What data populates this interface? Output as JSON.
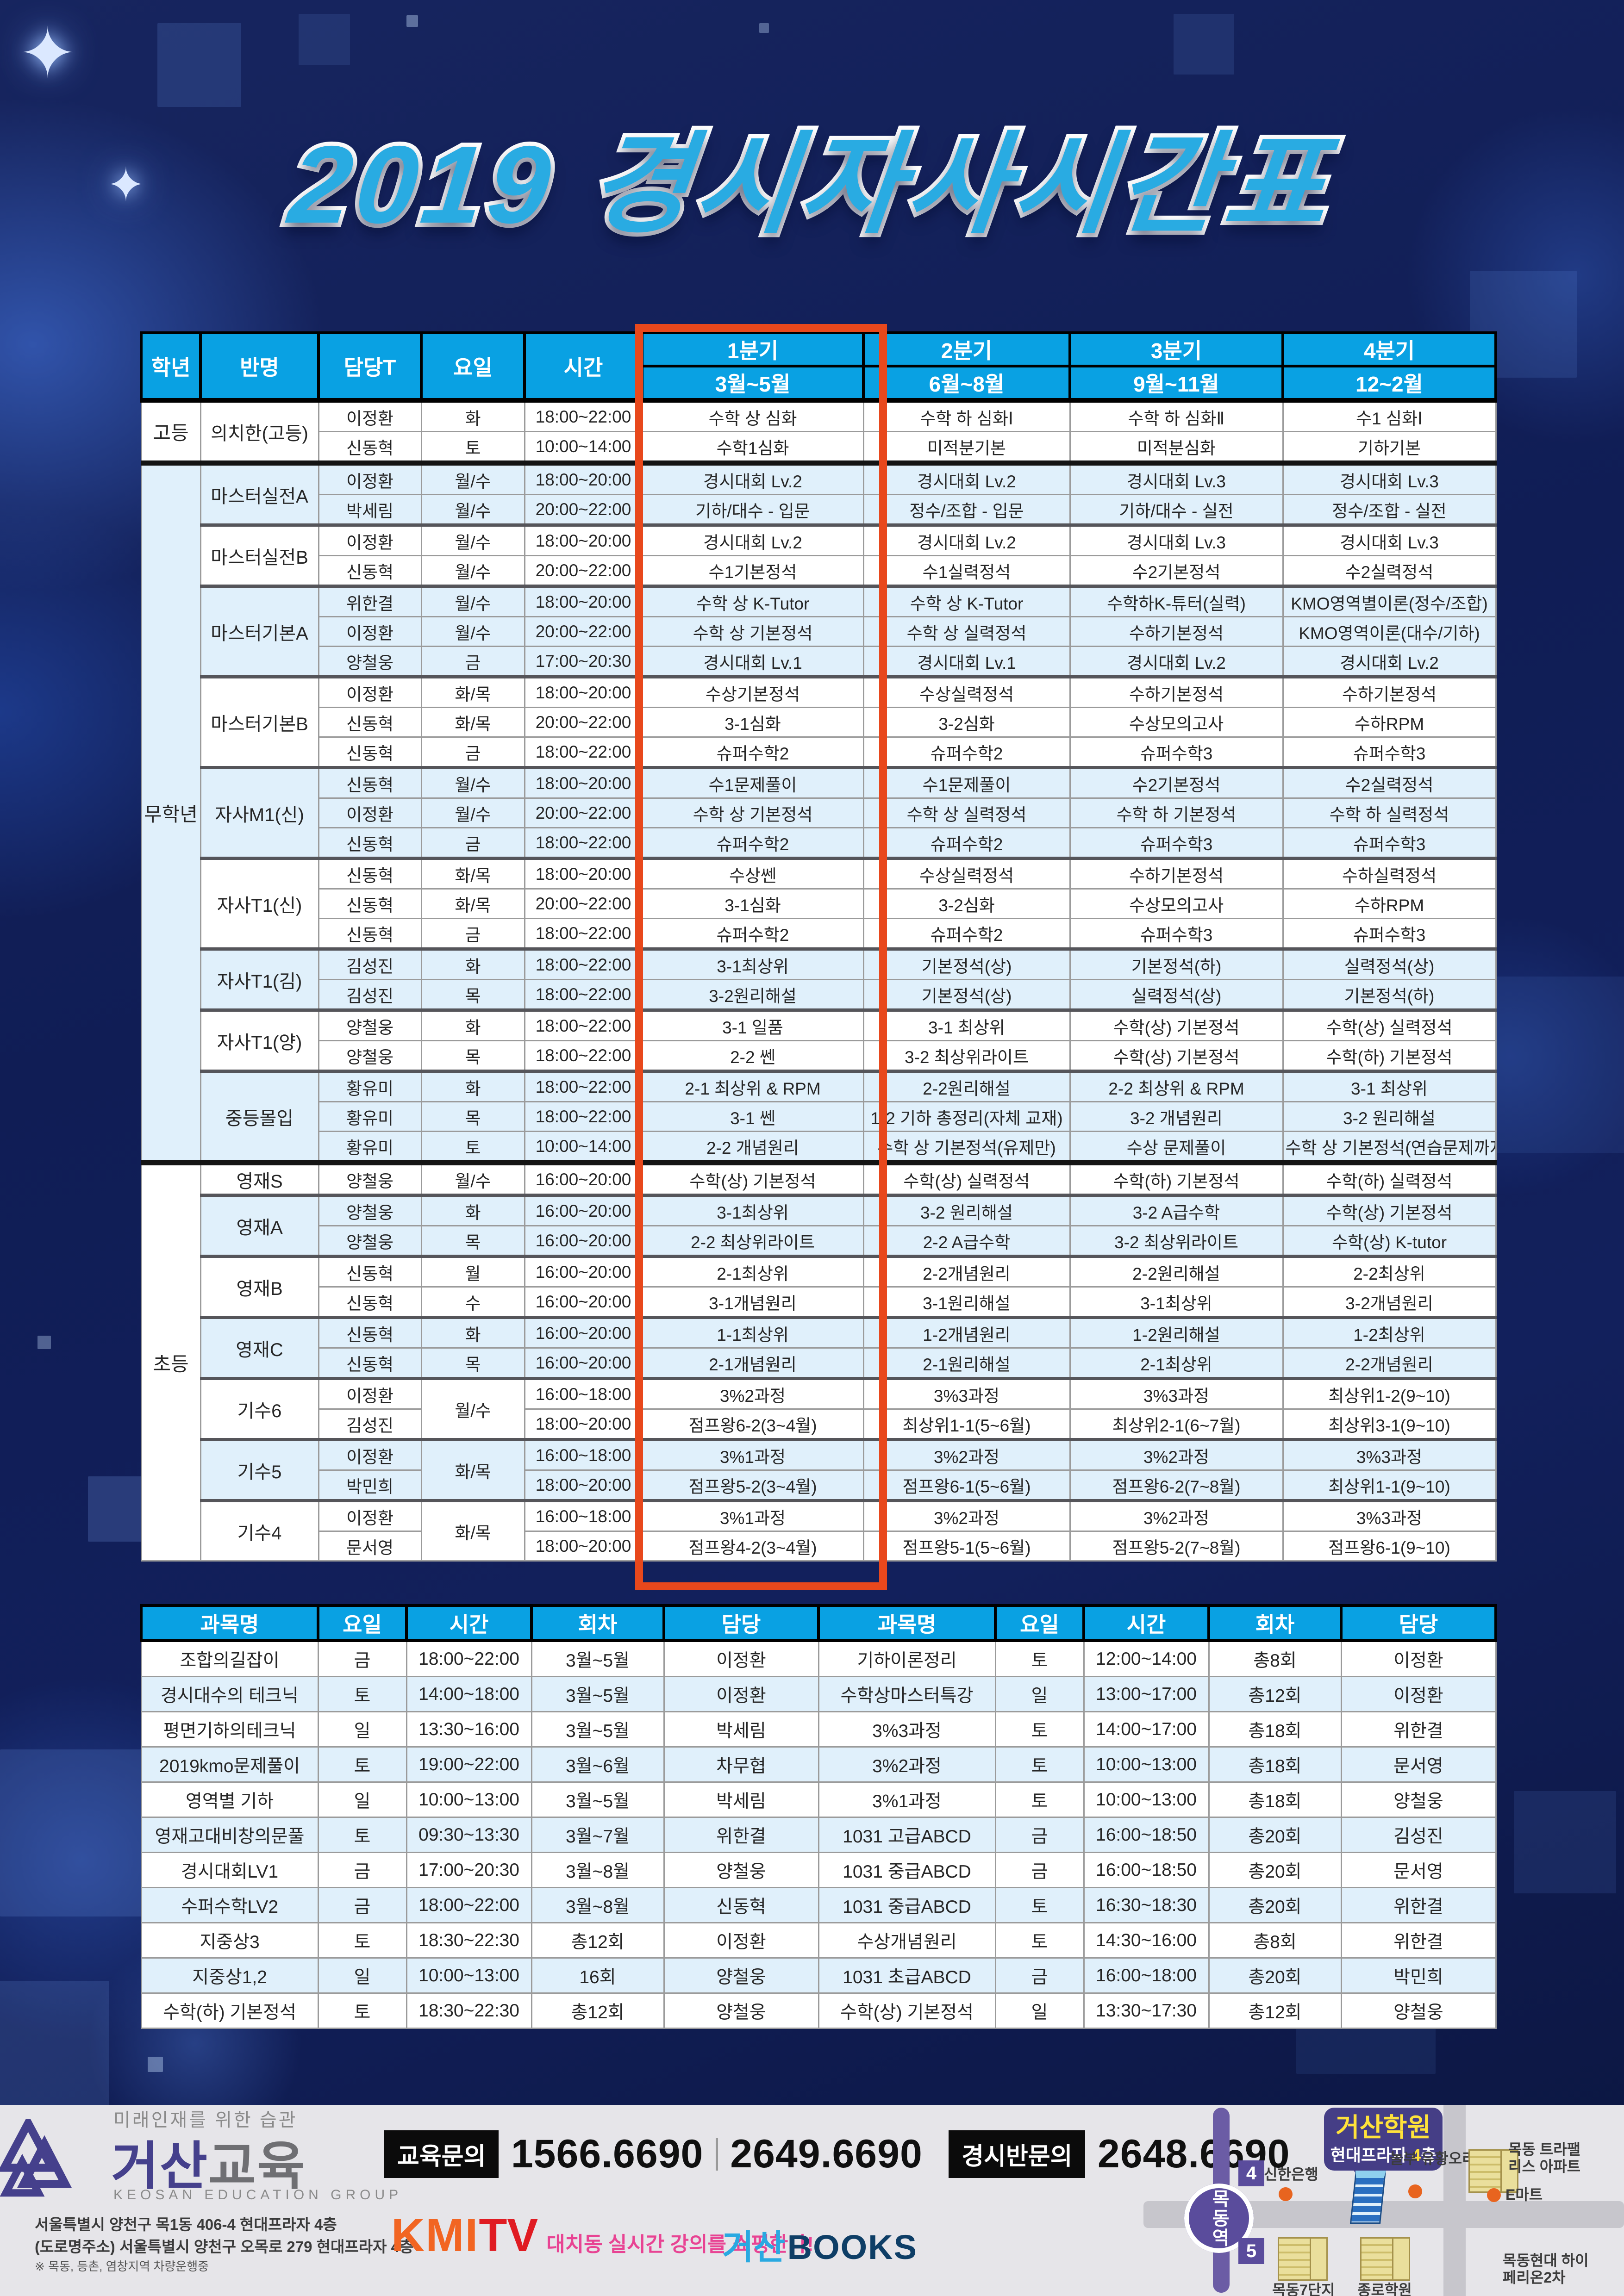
{
  "title": "2019 경시자사시간표",
  "schedule": {
    "columns": [
      "학년",
      "반명",
      "담당T",
      "요일",
      "시간"
    ],
    "quarters": [
      {
        "label": "1분기",
        "months": "3월~5월"
      },
      {
        "label": "2분기",
        "months": "6월~8월"
      },
      {
        "label": "3분기",
        "months": "9월~11월"
      },
      {
        "label": "4분기",
        "months": "12~2월"
      }
    ],
    "highlighted_quarter": "1분기",
    "sections": [
      {
        "grade": "고등",
        "groups": [
          {
            "name": "의치한(고등)",
            "tint": false,
            "rows": [
              {
                "teacher": "이정환",
                "day": "화",
                "time": "18:00~22:00",
                "quarters": [
                  "수학 상 심화",
                  "수학 하 심화Ⅰ",
                  "수학 하 심화Ⅱ",
                  "수1 심화Ⅰ"
                ]
              },
              {
                "teacher": "신동혁",
                "day": "토",
                "time": "10:00~14:00",
                "quarters": [
                  "수학1심화",
                  "미적분기본",
                  "미적분심화",
                  "기하기본"
                ]
              }
            ]
          }
        ]
      },
      {
        "grade": "무학년",
        "groups": [
          {
            "name": "마스터실전A",
            "tint": true,
            "rows": [
              {
                "teacher": "이정환",
                "day": "월/수",
                "time": "18:00~20:00",
                "quarters": [
                  "경시대회 Lv.2",
                  "경시대회 Lv.2",
                  "경시대회 Lv.3",
                  "경시대회 Lv.3"
                ]
              },
              {
                "teacher": "박세림",
                "day": "월/수",
                "time": "20:00~22:00",
                "quarters": [
                  "기하/대수 - 입문",
                  "정수/조합 - 입문",
                  "기하/대수 - 실전",
                  "정수/조합 - 실전"
                ]
              }
            ]
          },
          {
            "name": "마스터실전B",
            "tint": false,
            "rows": [
              {
                "teacher": "이정환",
                "day": "월/수",
                "time": "18:00~20:00",
                "quarters": [
                  "경시대회 Lv.2",
                  "경시대회 Lv.2",
                  "경시대회 Lv.3",
                  "경시대회 Lv.3"
                ]
              },
              {
                "teacher": "신동혁",
                "day": "월/수",
                "time": "20:00~22:00",
                "quarters": [
                  "수1기본정석",
                  "수1실력정석",
                  "수2기본정석",
                  "수2실력정석"
                ]
              }
            ]
          },
          {
            "name": "마스터기본A",
            "tint": true,
            "rows": [
              {
                "teacher": "위한결",
                "day": "월/수",
                "time": "18:00~20:00",
                "quarters": [
                  "수학 상 K-Tutor",
                  "수학 상 K-Tutor",
                  "수학하K-튜터(실력)",
                  "KMO영역별이론(정수/조합)"
                ]
              },
              {
                "teacher": "이정환",
                "day": "월/수",
                "time": "20:00~22:00",
                "quarters": [
                  "수학 상 기본정석",
                  "수학 상 실력정석",
                  "수하기본정석",
                  "KMO영역이론(대수/기하)"
                ]
              },
              {
                "teacher": "양철웅",
                "day": "금",
                "time": "17:00~20:30",
                "quarters": [
                  "경시대회 Lv.1",
                  "경시대회 Lv.1",
                  "경시대회 Lv.2",
                  "경시대회 Lv.2"
                ]
              }
            ]
          },
          {
            "name": "마스터기본B",
            "tint": false,
            "rows": [
              {
                "teacher": "이정환",
                "day": "화/목",
                "time": "18:00~20:00",
                "quarters": [
                  "수상기본정석",
                  "수상실력정석",
                  "수하기본정석",
                  "수하기본정석"
                ]
              },
              {
                "teacher": "신동혁",
                "day": "화/목",
                "time": "20:00~22:00",
                "quarters": [
                  "3-1심화",
                  "3-2심화",
                  "수상모의고사",
                  "수하RPM"
                ]
              },
              {
                "teacher": "신동혁",
                "day": "금",
                "time": "18:00~22:00",
                "quarters": [
                  "슈퍼수학2",
                  "슈퍼수학2",
                  "슈퍼수학3",
                  "슈퍼수학3"
                ]
              }
            ]
          },
          {
            "name": "자사M1(신)",
            "tint": true,
            "rows": [
              {
                "teacher": "신동혁",
                "day": "월/수",
                "time": "18:00~20:00",
                "quarters": [
                  "수1문제풀이",
                  "수1문제풀이",
                  "수2기본정석",
                  "수2실력정석"
                ]
              },
              {
                "teacher": "이정환",
                "day": "월/수",
                "time": "20:00~22:00",
                "quarters": [
                  "수학 상 기본정석",
                  "수학 상 실력정석",
                  "수학 하 기본정석",
                  "수학 하 실력정석"
                ]
              },
              {
                "teacher": "신동혁",
                "day": "금",
                "time": "18:00~22:00",
                "quarters": [
                  "슈퍼수학2",
                  "슈퍼수학2",
                  "슈퍼수학3",
                  "슈퍼수학3"
                ]
              }
            ]
          },
          {
            "name": "자사T1(신)",
            "tint": false,
            "rows": [
              {
                "teacher": "신동혁",
                "day": "화/목",
                "time": "18:00~20:00",
                "quarters": [
                  "수상쎈",
                  "수상실력정석",
                  "수하기본정석",
                  "수하실력정석"
                ]
              },
              {
                "teacher": "신동혁",
                "day": "화/목",
                "time": "20:00~22:00",
                "quarters": [
                  "3-1심화",
                  "3-2심화",
                  "수상모의고사",
                  "수하RPM"
                ]
              },
              {
                "teacher": "신동혁",
                "day": "금",
                "time": "18:00~22:00",
                "quarters": [
                  "슈퍼수학2",
                  "슈퍼수학2",
                  "슈퍼수학3",
                  "슈퍼수학3"
                ]
              }
            ]
          },
          {
            "name": "자사T1(김)",
            "tint": true,
            "rows": [
              {
                "teacher": "김성진",
                "day": "화",
                "time": "18:00~22:00",
                "quarters": [
                  "3-1최상위",
                  "기본정석(상)",
                  "기본정석(하)",
                  "실력정석(상)"
                ]
              },
              {
                "teacher": "김성진",
                "day": "목",
                "time": "18:00~22:00",
                "quarters": [
                  "3-2원리해설",
                  "기본정석(상)",
                  "실력정석(상)",
                  "기본정석(하)"
                ]
              }
            ]
          },
          {
            "name": "자사T1(양)",
            "tint": false,
            "rows": [
              {
                "teacher": "양철웅",
                "day": "화",
                "time": "18:00~22:00",
                "quarters": [
                  "3-1 일품",
                  "3-1 최상위",
                  "수학(상) 기본정석",
                  "수학(상) 실력정석"
                ]
              },
              {
                "teacher": "양철웅",
                "day": "목",
                "time": "18:00~22:00",
                "quarters": [
                  "2-2 쎈",
                  "3-2 최상위라이트",
                  "수학(상) 기본정석",
                  "수학(하) 기본정석"
                ]
              }
            ]
          },
          {
            "name": "중등몰입",
            "tint": true,
            "rows": [
              {
                "teacher": "황유미",
                "day": "화",
                "time": "18:00~22:00",
                "quarters": [
                  "2-1 최상위 & RPM",
                  "2-2원리해설",
                  "2-2 최상위 & RPM",
                  "3-1 최상위"
                ]
              },
              {
                "teacher": "황유미",
                "day": "목",
                "time": "18:00~22:00",
                "quarters": [
                  "3-1 쎈",
                  "1-2 기하 총정리(자체 교재)",
                  "3-2 개념원리",
                  "3-2 원리해설"
                ]
              },
              {
                "teacher": "황유미",
                "day": "토",
                "time": "10:00~14:00",
                "quarters": [
                  "2-2 개념원리",
                  "수학 상 기본정석(유제만)",
                  "수상 문제풀이",
                  "수학 상 기본정석(연습문제까지)"
                ]
              }
            ]
          }
        ]
      },
      {
        "grade": "초등",
        "groups": [
          {
            "name": "영재S",
            "tint": false,
            "rows": [
              {
                "teacher": "양철웅",
                "day": "월/수",
                "time": "16:00~20:00",
                "quarters": [
                  "수학(상) 기본정석",
                  "수학(상) 실력정석",
                  "수학(하) 기본정석",
                  "수학(하) 실력정석"
                ]
              }
            ]
          },
          {
            "name": "영재A",
            "tint": true,
            "rows": [
              {
                "teacher": "양철웅",
                "day": "화",
                "time": "16:00~20:00",
                "quarters": [
                  "3-1최상위",
                  "3-2 원리해설",
                  "3-2 A급수학",
                  "수학(상) 기본정석"
                ]
              },
              {
                "teacher": "양철웅",
                "day": "목",
                "time": "16:00~20:00",
                "quarters": [
                  "2-2 최상위라이트",
                  "2-2 A급수학",
                  "3-2 최상위라이트",
                  "수학(상) K-tutor"
                ]
              }
            ]
          },
          {
            "name": "영재B",
            "tint": false,
            "rows": [
              {
                "teacher": "신동혁",
                "day": "월",
                "time": "16:00~20:00",
                "quarters": [
                  "2-1최상위",
                  "2-2개념원리",
                  "2-2원리해설",
                  "2-2최상위"
                ]
              },
              {
                "teacher": "신동혁",
                "day": "수",
                "time": "16:00~20:00",
                "quarters": [
                  "3-1개념원리",
                  "3-1원리해설",
                  "3-1최상위",
                  "3-2개념원리"
                ]
              }
            ]
          },
          {
            "name": "영재C",
            "tint": true,
            "rows": [
              {
                "teacher": "신동혁",
                "day": "화",
                "time": "16:00~20:00",
                "quarters": [
                  "1-1최상위",
                  "1-2개념원리",
                  "1-2원리해설",
                  "1-2최상위"
                ]
              },
              {
                "teacher": "신동혁",
                "day": "목",
                "time": "16:00~20:00",
                "quarters": [
                  "2-1개념원리",
                  "2-1원리해설",
                  "2-1최상위",
                  "2-2개념원리"
                ]
              }
            ]
          },
          {
            "name": "기수6",
            "tint": false,
            "shared_day": "월/수",
            "rows": [
              {
                "teacher": "이정환",
                "time": "16:00~18:00",
                "quarters": [
                  "3%2과정",
                  "3%3과정",
                  "3%3과정",
                  "최상위1-2(9~10)"
                ]
              },
              {
                "teacher": "김성진",
                "time": "18:00~20:00",
                "quarters": [
                  "점프왕6-2(3~4월)",
                  "최상위1-1(5~6월)",
                  "최상위2-1(6~7월)",
                  "최상위3-1(9~10)"
                ]
              }
            ]
          },
          {
            "name": "기수5",
            "tint": true,
            "shared_day": "화/목",
            "rows": [
              {
                "teacher": "이정환",
                "time": "16:00~18:00",
                "quarters": [
                  "3%1과정",
                  "3%2과정",
                  "3%2과정",
                  "3%3과정"
                ]
              },
              {
                "teacher": "박민희",
                "time": "18:00~20:00",
                "quarters": [
                  "점프왕5-2(3~4월)",
                  "점프왕6-1(5~6월)",
                  "점프왕6-2(7~8월)",
                  "최상위1-1(9~10)"
                ]
              }
            ]
          },
          {
            "name": "기수4",
            "tint": false,
            "shared_day": "화/목",
            "rows": [
              {
                "teacher": "이정환",
                "time": "16:00~18:00",
                "quarters": [
                  "3%1과정",
                  "3%2과정",
                  "3%2과정",
                  "3%3과정"
                ]
              },
              {
                "teacher": "문서영",
                "time": "18:00~20:00",
                "quarters": [
                  "점프왕4-2(3~4월)",
                  "점프왕5-1(5~6월)",
                  "점프왕5-2(7~8월)",
                  "점프왕6-1(9~10)"
                ]
              }
            ]
          }
        ]
      }
    ]
  },
  "courses": {
    "columns": [
      "과목명",
      "요일",
      "시간",
      "회차",
      "담당"
    ],
    "rows": [
      {
        "left": {
          "subject": "조합의길잡이",
          "day": "금",
          "time": "18:00~22:00",
          "sessions": "3월~5월",
          "teacher": "이정환"
        },
        "right": {
          "subject": "기하이론정리",
          "day": "토",
          "time": "12:00~14:00",
          "sessions": "총8회",
          "teacher": "이정환"
        }
      },
      {
        "left": {
          "subject": "경시대수의 테크닉",
          "day": "토",
          "time": "14:00~18:00",
          "sessions": "3월~5월",
          "teacher": "이정환"
        },
        "right": {
          "subject": "수학상마스터특강",
          "day": "일",
          "time": "13:00~17:00",
          "sessions": "총12회",
          "teacher": "이정환"
        }
      },
      {
        "left": {
          "subject": "평면기하의테크닉",
          "day": "일",
          "time": "13:30~16:00",
          "sessions": "3월~5월",
          "teacher": "박세림"
        },
        "right": {
          "subject": "3%3과정",
          "day": "토",
          "time": "14:00~17:00",
          "sessions": "총18회",
          "teacher": "위한결"
        }
      },
      {
        "left": {
          "subject": "2019kmo문제풀이",
          "day": "토",
          "time": "19:00~22:00",
          "sessions": "3월~6월",
          "teacher": "차무협"
        },
        "right": {
          "subject": "3%2과정",
          "day": "토",
          "time": "10:00~13:00",
          "sessions": "총18회",
          "teacher": "문서영"
        }
      },
      {
        "left": {
          "subject": "영역별 기하",
          "day": "일",
          "time": "10:00~13:00",
          "sessions": "3월~5월",
          "teacher": "박세림"
        },
        "right": {
          "subject": "3%1과정",
          "day": "토",
          "time": "10:00~13:00",
          "sessions": "총18회",
          "teacher": "양철웅"
        }
      },
      {
        "left": {
          "subject": "영재고대비창의문풀",
          "day": "토",
          "time": "09:30~13:30",
          "sessions": "3월~7월",
          "teacher": "위한결"
        },
        "right": {
          "subject": "1031 고급ABCD",
          "day": "금",
          "time": "16:00~18:50",
          "sessions": "총20회",
          "teacher": "김성진"
        }
      },
      {
        "left": {
          "subject": "경시대회LV1",
          "day": "금",
          "time": "17:00~20:30",
          "sessions": "3월~8월",
          "teacher": "양철웅"
        },
        "right": {
          "subject": "1031 중급ABCD",
          "day": "금",
          "time": "16:00~18:50",
          "sessions": "총20회",
          "teacher": "문서영"
        }
      },
      {
        "left": {
          "subject": "수퍼수학LV2",
          "day": "금",
          "time": "18:00~22:00",
          "sessions": "3월~8월",
          "teacher": "신동혁"
        },
        "right": {
          "subject": "1031 중급ABCD",
          "day": "토",
          "time": "16:30~18:30",
          "sessions": "총20회",
          "teacher": "위한결"
        }
      },
      {
        "left": {
          "subject": "지중상3",
          "day": "토",
          "time": "18:30~22:30",
          "sessions": "총12회",
          "teacher": "이정환"
        },
        "right": {
          "subject": "수상개념원리",
          "day": "토",
          "time": "14:30~16:00",
          "sessions": "총8회",
          "teacher": "위한결"
        }
      },
      {
        "left": {
          "subject": "지중상1,2",
          "day": "일",
          "time": "10:00~13:00",
          "sessions": "16회",
          "teacher": "양철웅"
        },
        "right": {
          "subject": "1031 초급ABCD",
          "day": "금",
          "time": "16:00~18:00",
          "sessions": "총20회",
          "teacher": "박민희"
        }
      },
      {
        "left": {
          "subject": "수학(하) 기본정석",
          "day": "토",
          "time": "18:30~22:30",
          "sessions": "총12회",
          "teacher": "양철웅"
        },
        "right": {
          "subject": "수학(상) 기본정석",
          "day": "일",
          "time": "13:30~17:30",
          "sessions": "총12회",
          "teacher": "양철웅"
        }
      }
    ]
  },
  "footer": {
    "tagline": "미래인재를 위한 습관",
    "brand_ko_1": "거산",
    "brand_ko_2": "교육",
    "brand_en": "KEOSAN EDUCATION GROUP",
    "address_line1": "서울특별시 양천구 목1동 406-4 현대프라자 4층",
    "address_line2": "(도로명주소) 서울특별시 양천구 오목로 279 현대프라자 4층",
    "shuttle_note": "※ 목동, 등촌, 염창지역 차량운행중",
    "edu_inquiry_label": "교육문의",
    "edu_phone1": "1566.6690",
    "edu_phone2": "2649.6690",
    "contest_inquiry_label": "경시반문의",
    "contest_phone": "2648.6690",
    "kmi": "KMI",
    "tv": "TV",
    "kmi_tagline": "대치동 실시간 강의를 쇼핑한다!",
    "books_ko": "거산",
    "books_en": "BOOKS",
    "map": {
      "station": "목동역",
      "exit_badges": [
        "4",
        "5"
      ],
      "academy_line1": "거산학원",
      "academy_line2_pre": "현대프라자 ",
      "academy_line2_num": "4",
      "academy_line2_post": "층",
      "landmarks": [
        "신한은행",
        "놀부 유황오리",
        "목동 트라팰리스 아파트",
        "E마트",
        "목동7단지",
        "종로학원",
        "목동현대 하이페리온2차"
      ]
    }
  }
}
